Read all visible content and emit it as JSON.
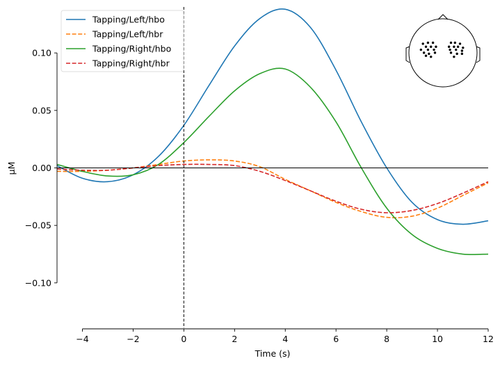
{
  "chart_data": {
    "type": "line",
    "xlabel": "Time (s)",
    "ylabel": "µM",
    "xlim": [
      -5,
      12
    ],
    "ylim": [
      -0.14,
      0.14
    ],
    "xticks": [
      -4,
      -2,
      0,
      2,
      4,
      6,
      8,
      10,
      12
    ],
    "xtick_labels": [
      "−4",
      "−2",
      "0",
      "2",
      "4",
      "6",
      "8",
      "10",
      "12"
    ],
    "yticks": [
      -0.1,
      -0.05,
      0.0,
      0.05,
      0.1
    ],
    "ytick_labels": [
      "−0.10",
      "−0.05",
      "0.00",
      "0.05",
      "0.10"
    ],
    "zero_line": true,
    "event_line_x": 0,
    "legend_position": "upper-left",
    "grid": false,
    "x": [
      -5,
      -4,
      -3,
      -2,
      -1,
      0,
      1,
      2,
      3,
      4,
      5,
      6,
      7,
      8,
      9,
      10,
      11,
      12
    ],
    "series": [
      {
        "name": "Tapping/Left/hbo",
        "color": "#1f77b4",
        "dash": "solid",
        "values": [
          0.002,
          -0.009,
          -0.012,
          -0.006,
          0.01,
          0.037,
          0.072,
          0.106,
          0.13,
          0.138,
          0.122,
          0.085,
          0.04,
          0.0,
          -0.03,
          -0.045,
          -0.049,
          -0.046
        ]
      },
      {
        "name": "Tapping/Left/hbr",
        "color": "#ff7f0e",
        "dash": "dashed",
        "values": [
          -0.003,
          -0.003,
          -0.002,
          0.0,
          0.003,
          0.006,
          0.007,
          0.006,
          0.001,
          -0.01,
          -0.02,
          -0.03,
          -0.038,
          -0.043,
          -0.042,
          -0.035,
          -0.024,
          -0.013
        ]
      },
      {
        "name": "Tapping/Right/hbo",
        "color": "#2ca02c",
        "dash": "solid",
        "values": [
          0.003,
          -0.003,
          -0.007,
          -0.006,
          0.003,
          0.022,
          0.045,
          0.067,
          0.082,
          0.086,
          0.07,
          0.04,
          0.0,
          -0.035,
          -0.058,
          -0.07,
          -0.075,
          -0.075
        ]
      },
      {
        "name": "Tapping/Right/hbr",
        "color": "#d62728",
        "dash": "dashed",
        "values": [
          -0.001,
          -0.002,
          -0.002,
          0.0,
          0.002,
          0.003,
          0.003,
          0.002,
          -0.003,
          -0.011,
          -0.02,
          -0.029,
          -0.036,
          -0.039,
          -0.037,
          -0.031,
          -0.022,
          -0.012
        ]
      }
    ]
  },
  "head_inset": {
    "left_channels": [
      [
        -40,
        -14
      ],
      [
        -30,
        -16
      ],
      [
        -20,
        -16
      ],
      [
        -34,
        -8
      ],
      [
        -24,
        -8
      ],
      [
        -14,
        -8
      ],
      [
        -44,
        -2
      ],
      [
        -30,
        -2
      ],
      [
        -18,
        -2
      ],
      [
        -38,
        4
      ],
      [
        -28,
        6
      ],
      [
        -16,
        4
      ],
      [
        -34,
        10
      ],
      [
        -24,
        12
      ]
    ],
    "right_channels": [
      [
        16,
        -16
      ],
      [
        24,
        -16
      ],
      [
        34,
        -14
      ],
      [
        12,
        -8
      ],
      [
        22,
        -8
      ],
      [
        30,
        -8
      ],
      [
        40,
        -6
      ],
      [
        14,
        -2
      ],
      [
        26,
        -2
      ],
      [
        38,
        0
      ],
      [
        16,
        4
      ],
      [
        28,
        6
      ],
      [
        38,
        6
      ],
      [
        22,
        12
      ]
    ]
  }
}
